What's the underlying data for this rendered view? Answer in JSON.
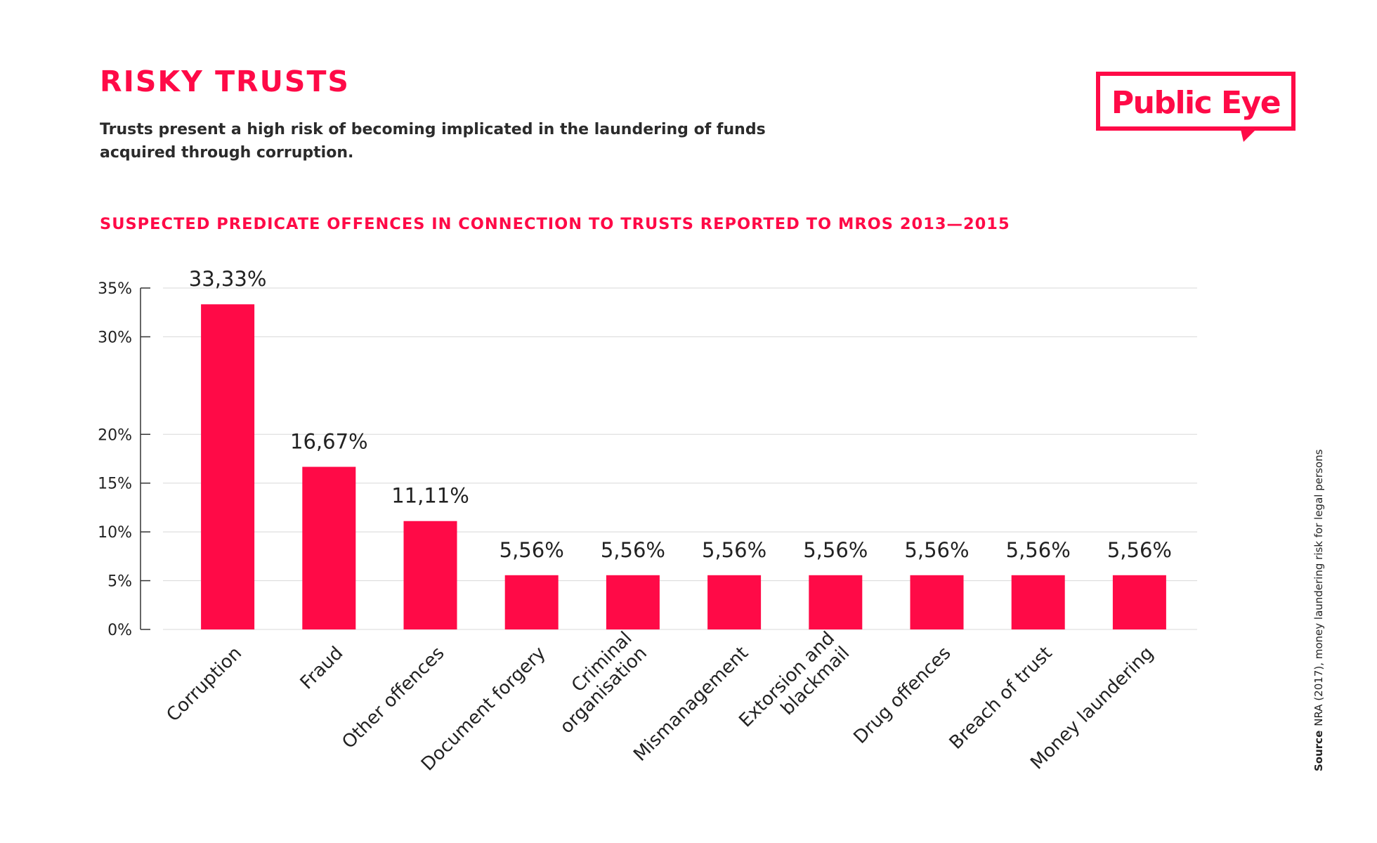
{
  "header": {
    "title": "RISKY TRUSTS",
    "subtitle": "Trusts present a high risk of becoming implicated in the laundering of funds acquired through corruption."
  },
  "logo": {
    "text": "Public Eye"
  },
  "source": {
    "label": "Source",
    "text": "NRA (2017), money laundering risk for legal persons"
  },
  "colors": {
    "accent": "#ff0a47",
    "text": "#222222",
    "grid": "#d8d8d8"
  },
  "chart_data": {
    "type": "bar",
    "title": "SUSPECTED PREDICATE OFFENCES IN CONNECTION TO TRUSTS REPORTED TO MROS 2013—2015",
    "categories": [
      [
        "Corruption"
      ],
      [
        "Fraud"
      ],
      [
        "Other offences"
      ],
      [
        "Document forgery"
      ],
      [
        "Criminal",
        "organisation"
      ],
      [
        "Mismanagement"
      ],
      [
        "Extorsion and",
        "blackmail"
      ],
      [
        "Drug offences"
      ],
      [
        "Breach of trust"
      ],
      [
        "Money laundering"
      ]
    ],
    "values": [
      33.33,
      16.67,
      11.11,
      5.56,
      5.56,
      5.56,
      5.56,
      5.56,
      5.56,
      5.56
    ],
    "data_labels": [
      "33,33%",
      "16,67%",
      "11,11%",
      "5,56%",
      "5,56%",
      "5,56%",
      "5,56%",
      "5,56%",
      "5,56%",
      "5,56%"
    ],
    "y_ticks": [
      {
        "value": 0,
        "label": "0%"
      },
      {
        "value": 5,
        "label": "5%"
      },
      {
        "value": 10,
        "label": "10%"
      },
      {
        "value": 15,
        "label": "15%"
      },
      {
        "value": 20,
        "label": "20%"
      },
      {
        "value": 30,
        "label": "30%"
      },
      {
        "value": 35,
        "label": "35%"
      }
    ],
    "ylim": [
      0,
      35
    ],
    "grid": true,
    "xlabel": "",
    "ylabel": ""
  }
}
